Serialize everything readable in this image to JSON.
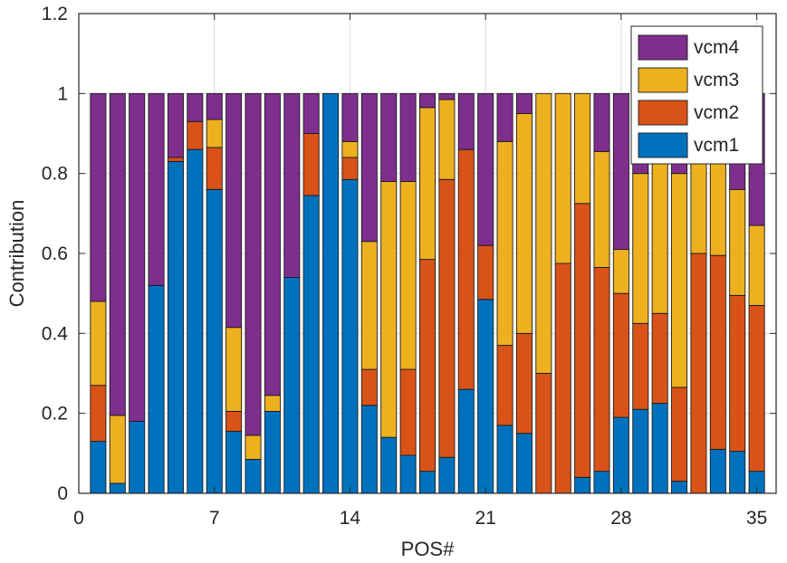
{
  "chart_data": {
    "type": "bar",
    "stacked": true,
    "xlabel": "POS#",
    "ylabel": "Contribution",
    "xlim": [
      0,
      36
    ],
    "ylim": [
      0,
      1.2
    ],
    "x_ticks": [
      0,
      7,
      14,
      21,
      28,
      35
    ],
    "y_ticks": [
      0,
      0.2,
      0.4,
      0.6,
      0.8,
      1,
      1.2
    ],
    "y_tick_labels": [
      "0",
      "0.2",
      "0.4",
      "0.6",
      "0.8",
      "1",
      "1.2"
    ],
    "grid": true,
    "legend": "top-right",
    "x": [
      1,
      2,
      3,
      4,
      5,
      6,
      7,
      8,
      9,
      10,
      11,
      12,
      13,
      14,
      15,
      16,
      17,
      18,
      19,
      20,
      21,
      22,
      23,
      24,
      25,
      26,
      27,
      28,
      29,
      30,
      31,
      32,
      33,
      34,
      35
    ],
    "series": [
      {
        "name": "vcm1",
        "color": "#0072BD",
        "values": [
          0.13,
          0.025,
          0.18,
          0.52,
          0.83,
          0.86,
          0.76,
          0.155,
          0.085,
          0.205,
          0.54,
          0.745,
          1.0,
          0.785,
          0.22,
          0.14,
          0.095,
          0.055,
          0.09,
          0.26,
          0.485,
          0.17,
          0.15,
          0.0,
          0.0,
          0.04,
          0.055,
          0.19,
          0.21,
          0.225,
          0.03,
          0.0,
          0.11,
          0.105,
          0.055
        ]
      },
      {
        "name": "vcm2",
        "color": "#D95319",
        "values": [
          0.14,
          0.0,
          0.0,
          0.0,
          0.01,
          0.07,
          0.105,
          0.05,
          0.0,
          0.0,
          0.0,
          0.155,
          0.0,
          0.055,
          0.09,
          0.0,
          0.215,
          0.53,
          0.695,
          0.6,
          0.135,
          0.2,
          0.25,
          0.3,
          0.575,
          0.685,
          0.51,
          0.31,
          0.215,
          0.225,
          0.235,
          0.6,
          0.485,
          0.39,
          0.415
        ]
      },
      {
        "name": "vcm3",
        "color": "#EDB120",
        "values": [
          0.21,
          0.17,
          0.0,
          0.0,
          0.0,
          0.0,
          0.07,
          0.21,
          0.06,
          0.04,
          0.0,
          0.0,
          0.0,
          0.04,
          0.32,
          0.64,
          0.47,
          0.38,
          0.2,
          0.0,
          0.0,
          0.51,
          0.55,
          0.7,
          0.425,
          0.275,
          0.29,
          0.11,
          0.375,
          0.55,
          0.535,
          0.4,
          0.405,
          0.265,
          0.2
        ]
      },
      {
        "name": "vcm4",
        "color": "#7E2F8E",
        "values": [
          0.52,
          0.805,
          0.82,
          0.48,
          0.16,
          0.07,
          0.065,
          0.585,
          0.855,
          0.755,
          0.46,
          0.1,
          0.0,
          0.12,
          0.37,
          0.22,
          0.22,
          0.035,
          0.015,
          0.14,
          0.38,
          0.12,
          0.05,
          0.0,
          0.0,
          0.0,
          0.145,
          0.39,
          0.2,
          0.0,
          0.2,
          0.0,
          0.0,
          0.24,
          0.33
        ]
      }
    ]
  }
}
